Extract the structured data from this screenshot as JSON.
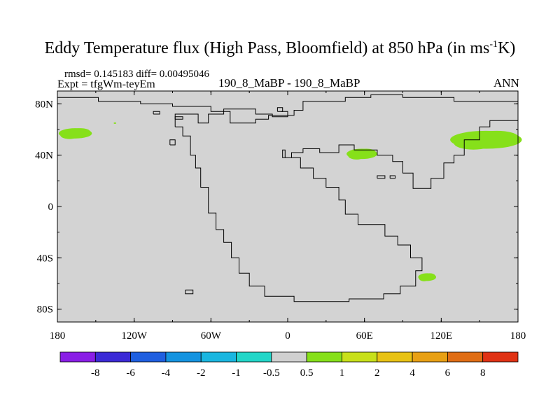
{
  "title": {
    "main": "Eddy Temperature flux (High Pass, Bloomfield) at 850 hPa (in ms",
    "sup": "-1",
    "end": "K)"
  },
  "subtitles": {
    "rmsd_diff": "rmsd= 0.145183 diff= 0.00495046",
    "expt": "Expt = tfgWm-teyEm",
    "center": "190_8_MaBP - 190_8_MaBP",
    "right": "ANN"
  },
  "chart_data": {
    "type": "heatmap",
    "title": "Eddy Temperature flux (High Pass, Bloomfield) at 850 hPa (in ms-1K)",
    "xlabel": "",
    "ylabel": "",
    "x_range": [
      -180,
      180
    ],
    "y_range": [
      -90,
      90
    ],
    "x_ticks": [
      {
        "value": -180,
        "label": "180"
      },
      {
        "value": -120,
        "label": "120W"
      },
      {
        "value": -60,
        "label": "60W"
      },
      {
        "value": 0,
        "label": "0"
      },
      {
        "value": 60,
        "label": "60E"
      },
      {
        "value": 120,
        "label": "120E"
      },
      {
        "value": 180,
        "label": "180"
      }
    ],
    "y_ticks": [
      {
        "value": 80,
        "label": "80N"
      },
      {
        "value": 40,
        "label": "40N"
      },
      {
        "value": 0,
        "label": "0"
      },
      {
        "value": -40,
        "label": "40S"
      },
      {
        "value": -80,
        "label": "80S"
      }
    ],
    "background_value_class": "-0.5 to 0.5",
    "highlighted_regions": [
      {
        "name": "north-pacific-west",
        "value_class": "0.5 to 1",
        "center_lon": -166,
        "center_lat": 57,
        "lon_extent": 13,
        "lat_extent": 4
      },
      {
        "name": "north-pacific-east",
        "value_class": "0.5 to 1",
        "center_lon": 155,
        "center_lat": 52,
        "lon_extent": 28,
        "lat_extent": 7
      },
      {
        "name": "central-asia",
        "value_class": "0.5 to 1",
        "center_lon": 58,
        "center_lat": 41,
        "lon_extent": 12,
        "lat_extent": 4
      },
      {
        "name": "southern-ocean",
        "value_class": "0.5 to 1",
        "center_lon": 109,
        "center_lat": -55,
        "lon_extent": 7,
        "lat_extent": 3
      },
      {
        "name": "pacific-speck",
        "value_class": "0.5 to 1",
        "center_lon": -135,
        "center_lat": 65,
        "lon_extent": 1,
        "lat_extent": 0.5
      }
    ],
    "coastline": [
      [
        -180,
        85
      ],
      [
        -148,
        85
      ],
      [
        -148,
        82
      ],
      [
        -115,
        82
      ],
      [
        -115,
        80
      ],
      [
        -90,
        80
      ],
      [
        -90,
        78
      ],
      [
        -60,
        78
      ],
      [
        -60,
        74
      ],
      [
        -45,
        74
      ],
      [
        -45,
        65
      ],
      [
        -25,
        65
      ],
      [
        -25,
        68
      ],
      [
        -15,
        68
      ],
      [
        -15,
        71
      ],
      [
        5,
        71
      ],
      [
        5,
        75
      ],
      [
        12,
        75
      ],
      [
        12,
        82
      ],
      [
        45,
        82
      ],
      [
        45,
        85
      ],
      [
        65,
        85
      ],
      [
        65,
        87
      ],
      [
        90,
        87
      ],
      [
        90,
        85
      ],
      [
        130,
        85
      ],
      [
        130,
        82
      ],
      [
        180,
        82
      ]
    ],
    "coastline_islands": [
      [
        [
          -105,
          72
        ],
        [
          -100,
          72
        ],
        [
          -100,
          74
        ],
        [
          -105,
          74
        ],
        [
          -105,
          72
        ]
      ],
      [
        [
          -88,
          68
        ],
        [
          -82,
          68
        ],
        [
          -82,
          70
        ],
        [
          -88,
          70
        ],
        [
          -88,
          68
        ]
      ],
      [
        [
          -92,
          48
        ],
        [
          -88,
          48
        ],
        [
          -88,
          52
        ],
        [
          -92,
          52
        ],
        [
          -92,
          48
        ]
      ],
      [
        [
          -8,
          74
        ],
        [
          -4,
          74
        ],
        [
          -4,
          77
        ],
        [
          -8,
          77
        ],
        [
          -8,
          74
        ]
      ],
      [
        [
          70,
          22
        ],
        [
          76,
          22
        ],
        [
          76,
          24
        ],
        [
          70,
          24
        ],
        [
          70,
          22
        ]
      ],
      [
        [
          80,
          22
        ],
        [
          84,
          22
        ],
        [
          84,
          24
        ],
        [
          80,
          24
        ],
        [
          80,
          22
        ]
      ],
      [
        [
          -80,
          -65
        ],
        [
          -74,
          -65
        ],
        [
          -74,
          -68
        ],
        [
          -80,
          -68
        ],
        [
          -80,
          -65
        ]
      ]
    ],
    "supercontinent_outline": [
      [
        -88,
        62
      ],
      [
        -82,
        62
      ],
      [
        -82,
        55
      ],
      [
        -76,
        55
      ],
      [
        -76,
        40
      ],
      [
        -72,
        40
      ],
      [
        -72,
        30
      ],
      [
        -68,
        30
      ],
      [
        -68,
        15
      ],
      [
        -62,
        15
      ],
      [
        -62,
        -5
      ],
      [
        -56,
        -5
      ],
      [
        -56,
        -18
      ],
      [
        -50,
        -18
      ],
      [
        -50,
        -28
      ],
      [
        -44,
        -28
      ],
      [
        -44,
        -40
      ],
      [
        -38,
        -40
      ],
      [
        -38,
        -52
      ],
      [
        -30,
        -52
      ],
      [
        -30,
        -62
      ],
      [
        -18,
        -62
      ],
      [
        -18,
        -70
      ],
      [
        5,
        -70
      ],
      [
        5,
        -74
      ],
      [
        48,
        -74
      ],
      [
        48,
        -72
      ],
      [
        75,
        -72
      ],
      [
        75,
        -68
      ],
      [
        88,
        -68
      ],
      [
        88,
        -62
      ],
      [
        100,
        -62
      ],
      [
        100,
        -50
      ],
      [
        105,
        -50
      ],
      [
        105,
        -40
      ],
      [
        96,
        -40
      ],
      [
        96,
        -30
      ],
      [
        86,
        -30
      ],
      [
        86,
        -23
      ],
      [
        76,
        -23
      ],
      [
        76,
        -14
      ],
      [
        55,
        -14
      ],
      [
        55,
        -6
      ],
      [
        45,
        -6
      ],
      [
        45,
        5
      ],
      [
        40,
        5
      ],
      [
        40,
        15
      ],
      [
        30,
        15
      ],
      [
        30,
        22
      ],
      [
        20,
        22
      ],
      [
        20,
        30
      ],
      [
        10,
        30
      ],
      [
        10,
        38
      ],
      [
        -4,
        38
      ],
      [
        -4,
        44
      ],
      [
        -2,
        44
      ],
      [
        -2,
        38
      ],
      [
        3,
        38
      ],
      [
        3,
        42
      ],
      [
        12,
        42
      ],
      [
        12,
        45
      ],
      [
        25,
        45
      ],
      [
        25,
        42
      ],
      [
        40,
        42
      ],
      [
        40,
        48
      ],
      [
        52,
        48
      ],
      [
        52,
        44
      ],
      [
        70,
        44
      ],
      [
        70,
        40
      ],
      [
        82,
        40
      ],
      [
        82,
        35
      ],
      [
        90,
        35
      ],
      [
        90,
        26
      ],
      [
        98,
        26
      ],
      [
        98,
        14
      ],
      [
        112,
        14
      ],
      [
        112,
        22
      ],
      [
        122,
        22
      ],
      [
        122,
        34
      ],
      [
        130,
        34
      ],
      [
        130,
        40
      ],
      [
        138,
        40
      ],
      [
        138,
        52
      ],
      [
        150,
        52
      ],
      [
        150,
        62
      ],
      [
        158,
        62
      ],
      [
        158,
        67
      ],
      [
        180,
        67
      ]
    ],
    "north_coast_segment": [
      [
        -88,
        62
      ],
      [
        -88,
        72
      ],
      [
        -70,
        72
      ],
      [
        -70,
        65
      ],
      [
        -62,
        65
      ],
      [
        -62,
        72
      ],
      [
        -50,
        72
      ],
      [
        -50,
        76
      ],
      [
        -25,
        76
      ],
      [
        -25,
        72
      ],
      [
        -12,
        72
      ],
      [
        -12,
        70
      ],
      [
        0,
        70
      ],
      [
        0,
        74
      ],
      [
        -5,
        74
      ]
    ]
  },
  "colorbar": {
    "labels": [
      "-8",
      "-6",
      "-4",
      "-2",
      "-1",
      "-0.5",
      "0.5",
      "1",
      "2",
      "4",
      "6",
      "8"
    ],
    "colors": [
      "#8a1ee6",
      "#3b2ad6",
      "#1f5fe0",
      "#1493e0",
      "#1ab6e0",
      "#22d6c8",
      "#d0d0d0",
      "#86e01a",
      "#c8e01a",
      "#e8c214",
      "#e8a014",
      "#e06d14",
      "#e03214"
    ]
  },
  "colors": {
    "background": "#d3d3d3",
    "positive": "#86e01a",
    "outline": "#000000"
  }
}
